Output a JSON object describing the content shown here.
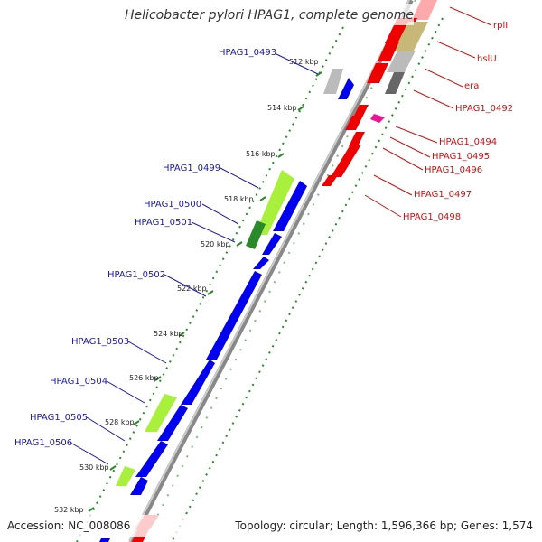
{
  "title": "Helicobacter pylori HPAG1, complete genome",
  "accession": "Accession: NC_008086",
  "topology": "Topology: circular; Length: 1,596,366 bp; Genes: 1,574",
  "ticks": [
    "512 kbp",
    "514 kbp",
    "516 kbp",
    "518 kbp",
    "520 kbp",
    "522 kbp",
    "524 kbp",
    "526 kbp",
    "528 kbp",
    "530 kbp",
    "532 kbp"
  ],
  "left_labels": [
    "HPAG1_0493",
    "HPAG1_0499",
    "HPAG1_0500",
    "HPAG1_0501",
    "HPAG1_0502",
    "HPAG1_0503",
    "HPAG1_0504",
    "HPAG1_0505",
    "HPAG1_0506"
  ],
  "right_labels": [
    "rplI",
    "hslU",
    "era",
    "HPAG1_0492",
    "HPAG1_0494",
    "HPAG1_0495",
    "HPAG1_0496",
    "HPAG1_0497",
    "HPAG1_0498"
  ],
  "colors": {
    "reverse_cds": "#0000ee",
    "forward_cds": "#ee0000",
    "highlight_green": "#a8f03c",
    "dark_green": "#2a8a2a",
    "grey": "#bbbbbb",
    "dark_grey": "#666666",
    "tan": "#c8b878",
    "pink": "#ff69b4",
    "light_pink": "#ffaaaa",
    "backbone": "#888888",
    "dotted": "#2a8a2a"
  }
}
